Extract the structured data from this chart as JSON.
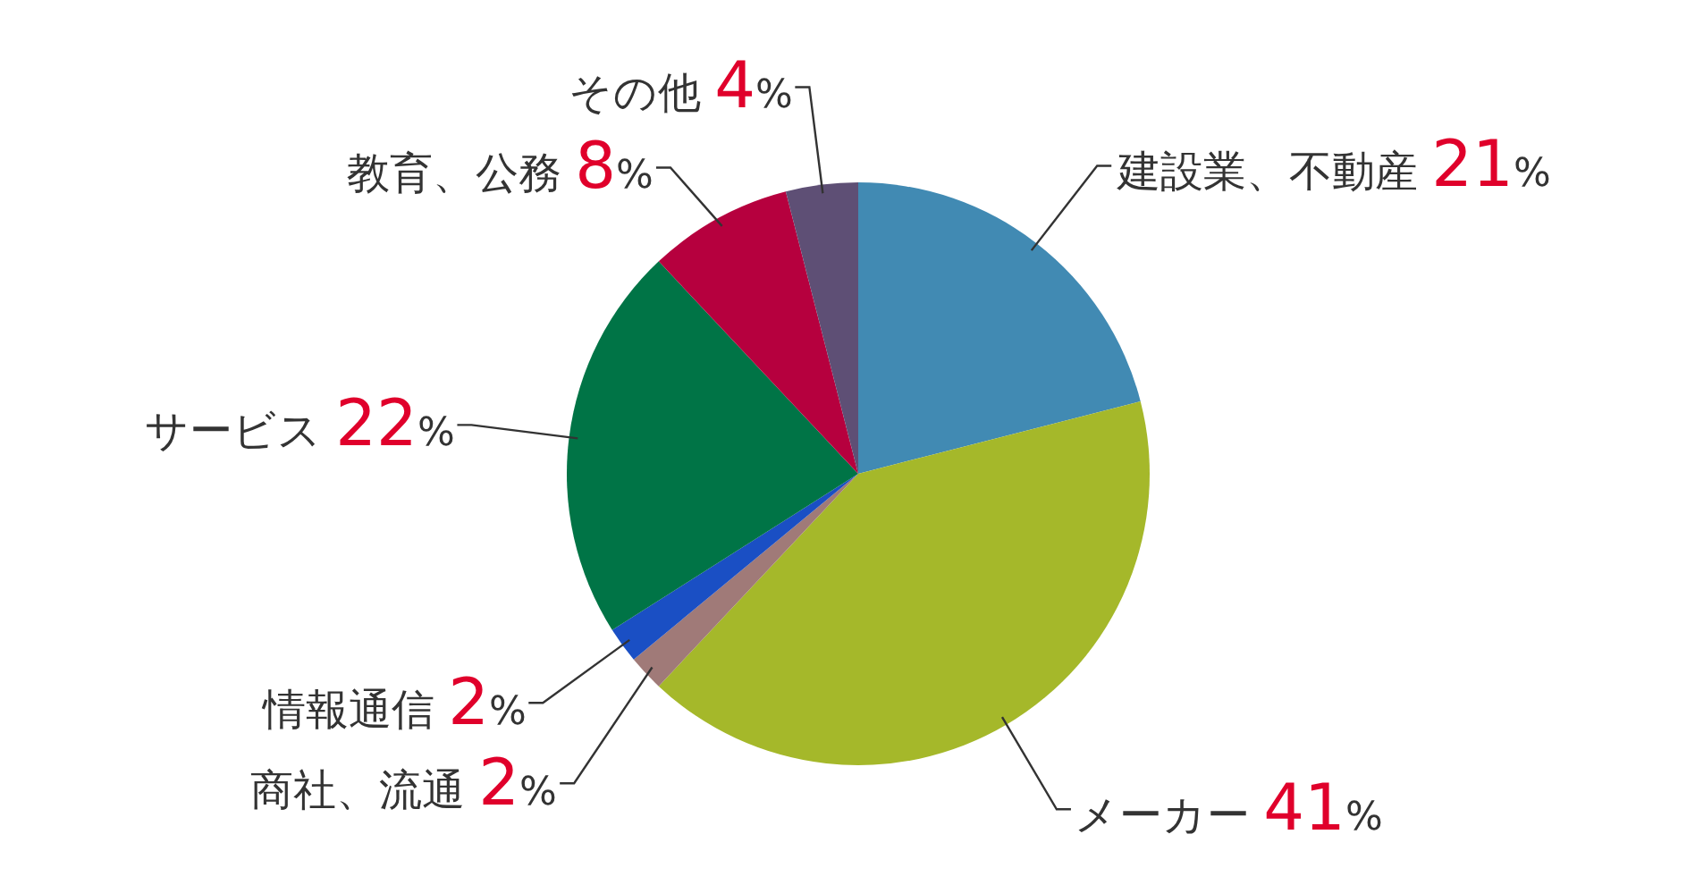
{
  "chart_data": {
    "type": "pie",
    "categories": [
      "建設業、不動産",
      "メーカー",
      "商社、流通",
      "情報通信",
      "サービス",
      "教育、公務",
      "その他"
    ],
    "values": [
      21,
      41,
      2,
      2,
      22,
      8,
      4
    ],
    "colors": [
      "#418ab3",
      "#a5b82a",
      "#a07a78",
      "#1a4fc4",
      "#007446",
      "#b6003e",
      "#5e4f75"
    ],
    "value_labels": [
      "21%",
      "41%",
      "2%",
      "2%",
      "22%",
      "8%",
      "4%"
    ]
  }
}
